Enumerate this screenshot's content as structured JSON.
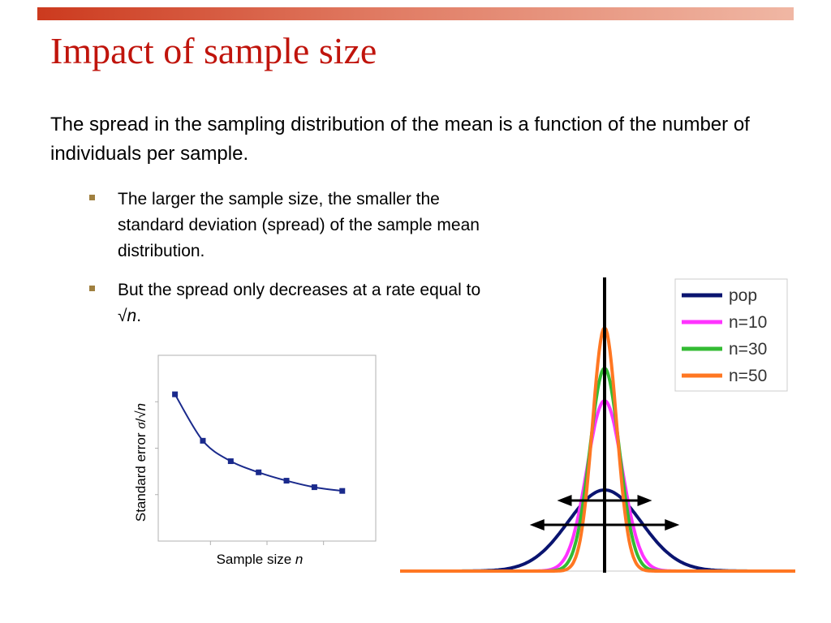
{
  "slide": {
    "title": "Impact of sample size",
    "intro": "The spread in the sampling distribution of the mean is a function of the number of individuals per sample.",
    "bullets": [
      {
        "text": "The larger the sample size, the smaller the standard deviation (spread) of the sample mean distribution."
      },
      {
        "text_before": "But the spread only decreases at a rate equal to ",
        "sqrt_symbol": "√",
        "variable": "n",
        "text_after": "."
      }
    ]
  },
  "chart_data": [
    {
      "type": "line",
      "xlabel_prefix": "Sample size ",
      "xlabel_var": "n",
      "ylabel_prefix": "Standard error ",
      "ylabel_sigma": "σ",
      "ylabel_sep": "/√",
      "ylabel_var": "n",
      "x": [
        1,
        2,
        3,
        4,
        5,
        6,
        7
      ],
      "values": [
        0.79,
        0.54,
        0.43,
        0.37,
        0.325,
        0.29,
        0.27
      ],
      "ylim": [
        0,
        1
      ],
      "color": "#1a2a8c"
    },
    {
      "type": "line",
      "legend_position": "top-right",
      "x_range": [
        -4,
        4
      ],
      "series": [
        {
          "name": "pop",
          "peak": 0.4,
          "sd": 1.0,
          "color": "#0a1470"
        },
        {
          "name": "n=10",
          "peak": 0.84,
          "sd": 0.48,
          "color": "#ff33ff"
        },
        {
          "name": "n=30",
          "peak": 1.0,
          "sd": 0.4,
          "color": "#33bb33"
        },
        {
          "name": "n=50",
          "peak": 1.2,
          "sd": 0.33,
          "color": "#ff7722"
        }
      ]
    }
  ]
}
